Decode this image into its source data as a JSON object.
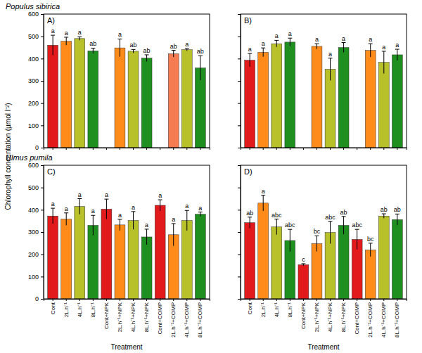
{
  "chart_data": [
    {
      "type": "bar",
      "title": "A)",
      "subtitle": "Populus sibirica",
      "y_label": "Chlorophyll concentation (µmol l⁻²)",
      "categories": [
        "Cont",
        "2L.h⁻¹",
        "4L.h⁻¹",
        "8L.h⁻¹",
        "Cont+NPK",
        "2L.h⁻¹+NPK",
        "4L.h⁻¹+NPK",
        "8L.h⁻¹+NPK",
        "Cont+COMP",
        "2L.h⁻¹+COMP",
        "4L.h⁻¹+COMP",
        "8L.h⁻¹+COMP"
      ],
      "values": [
        460,
        478,
        490,
        435,
        null,
        448,
        433,
        402,
        null,
        422,
        440,
        358
      ],
      "errors": [
        45,
        18,
        8,
        12,
        null,
        40,
        8,
        15,
        null,
        15,
        5,
        55
      ],
      "annotations": [
        "a",
        "a",
        "a",
        "ab",
        null,
        "a",
        "ab",
        "ab",
        null,
        "ab",
        "a",
        "ab"
      ],
      "colors": [
        "#e31a1c",
        "#ff8c1a",
        "#b8c02a",
        "#1f8f1f",
        "#e31a1c",
        "#ff8c1a",
        "#b8c02a",
        "#1f8f1f",
        "#e31a1c",
        "#f47c50",
        "#b8c02a",
        "#1f8f1f"
      ],
      "ylim": [
        0,
        600
      ],
      "yticks": [
        0,
        100,
        200,
        300,
        400,
        500,
        600
      ],
      "tick_labels": "y"
    },
    {
      "type": "bar",
      "title": "B)",
      "categories": [
        "Cont",
        "2L.h⁻¹",
        "4L.h⁻¹",
        "8L.h⁻¹",
        "Cont+NPK",
        "2L.h⁻¹+NPK",
        "4L.h⁻¹+NPK",
        "8L.h⁻¹+NPK",
        "Cont+COMP",
        "2L.h⁻¹+COMP",
        "4L.h⁻¹+COMP",
        "8L.h⁻¹+COMP"
      ],
      "values": [
        393,
        428,
        467,
        474,
        null,
        455,
        352,
        450,
        null,
        437,
        383,
        417
      ],
      "errors": [
        30,
        20,
        15,
        18,
        null,
        12,
        50,
        22,
        null,
        30,
        50,
        25
      ],
      "annotations": [
        "a",
        "a",
        "a",
        "a",
        null,
        "a",
        "a",
        "a",
        null,
        "a",
        "a",
        "a"
      ],
      "colors": [
        "#e31a1c",
        "#ff8c1a",
        "#b8c02a",
        "#1f8f1f",
        "#e31a1c",
        "#ff8c1a",
        "#b8c02a",
        "#1f8f1f",
        "#e31a1c",
        "#ff8c1a",
        "#b8c02a",
        "#1f8f1f"
      ],
      "ylim": [
        0,
        600
      ],
      "yticks": [
        0,
        100,
        200,
        300,
        400,
        500,
        600
      ],
      "tick_labels": false
    },
    {
      "type": "bar",
      "title": "C)",
      "subtitle": "Ulmus pumila",
      "x_label": "Treatment",
      "categories": [
        "Cont",
        "2L.h⁻¹",
        "4L.h⁻¹",
        "8L.h⁻¹",
        "Cont+NPK",
        "2L.h⁻¹+NPK",
        "4L.h⁻¹+NPK",
        "8L.h⁻¹+NPK",
        "Cont+COMP",
        "2L.h⁻¹+COMP",
        "4L.h⁻¹+COMP",
        "8L.h⁻¹+COMP"
      ],
      "values": [
        372,
        358,
        415,
        330,
        403,
        332,
        352,
        278,
        420,
        288,
        352,
        380
      ],
      "errors": [
        35,
        28,
        35,
        45,
        45,
        25,
        40,
        35,
        25,
        50,
        45,
        10
      ],
      "annotations": [
        "a",
        "a",
        "a",
        "a",
        "a",
        "a",
        "a",
        "a",
        "a",
        "a",
        "a",
        "a"
      ],
      "colors": [
        "#e31a1c",
        "#ff8c1a",
        "#b8c02a",
        "#1f8f1f",
        "#e31a1c",
        "#ff8c1a",
        "#b8c02a",
        "#1f8f1f",
        "#e31a1c",
        "#ff8c1a",
        "#b8c02a",
        "#1f8f1f"
      ],
      "ylim": [
        0,
        600
      ],
      "yticks": [
        0,
        100,
        200,
        300,
        400,
        500,
        600
      ]
    },
    {
      "type": "bar",
      "title": "D)",
      "x_label": "Treatment",
      "categories": [
        "Cont",
        "2L.h⁻¹",
        "4L.h⁻¹",
        "8L.h⁻¹",
        "Cont+NPK",
        "2L.h⁻¹+NPK",
        "4L.h⁻¹+NPK",
        "8L.h⁻¹+NPK",
        "Cont+COMP",
        "2L.h⁻¹+COMP",
        "4L.h⁻¹+COMP",
        "8L.h⁻¹+COMP"
      ],
      "values": [
        342,
        430,
        323,
        262,
        153,
        248,
        298,
        330,
        267,
        220,
        372,
        356
      ],
      "errors": [
        25,
        35,
        35,
        50,
        5,
        35,
        50,
        40,
        45,
        30,
        10,
        25
      ],
      "annotations": [
        "ab",
        "a",
        "abc",
        "abc",
        "c",
        "bc",
        "abc",
        "ab",
        "abc",
        "bc",
        "ab",
        "ab"
      ],
      "colors": [
        "#e31a1c",
        "#ff8c1a",
        "#b8c02a",
        "#1f8f1f",
        "#e31a1c",
        "#ff8c1a",
        "#b8c02a",
        "#1f8f1f",
        "#e31a1c",
        "#ff8c1a",
        "#b8c02a",
        "#1f8f1f"
      ],
      "ylim": [
        0,
        600
      ],
      "yticks": [
        0,
        100,
        200,
        300,
        400,
        500,
        600
      ],
      "tick_labels": "x"
    }
  ]
}
